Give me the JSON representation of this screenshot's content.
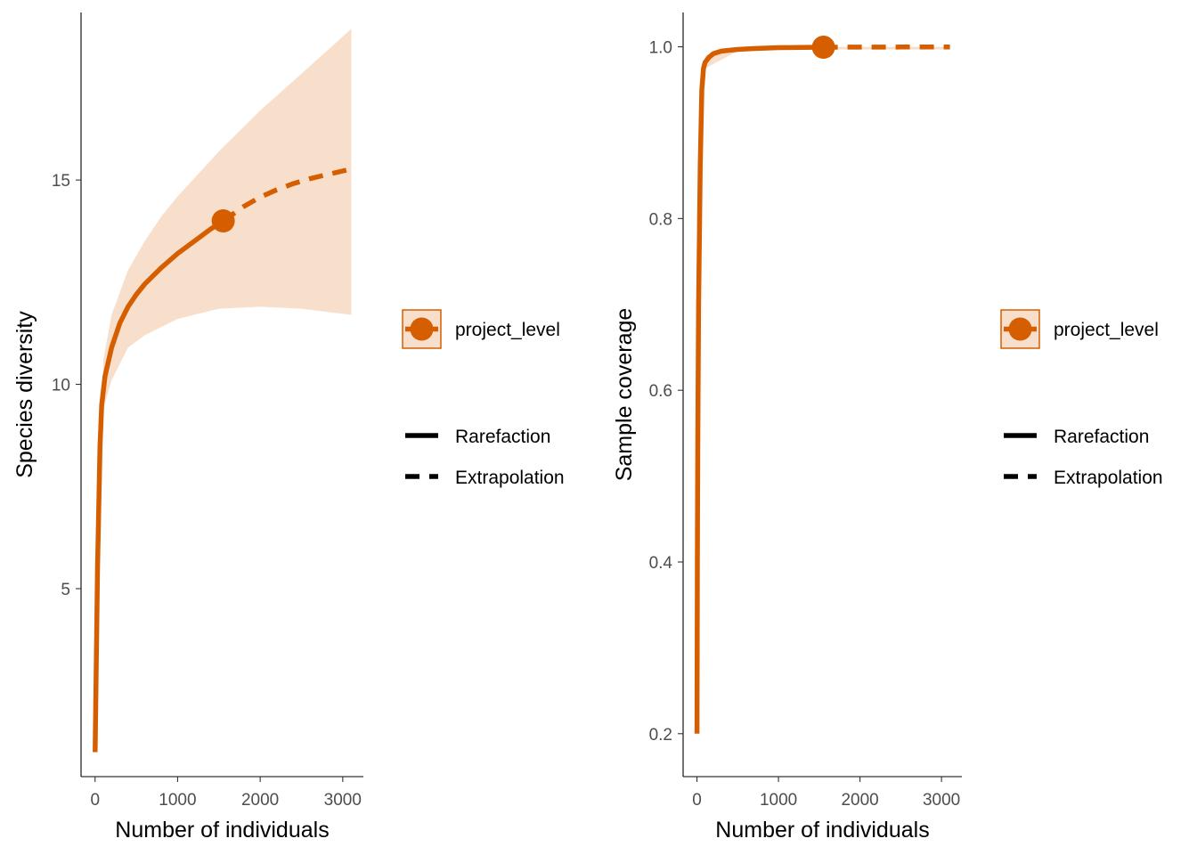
{
  "colors": {
    "line": "#D55E00",
    "ribbon": "#F7DFCC",
    "axis": "#000000",
    "tick_text": "#4D4D4D",
    "label_text": "#000000"
  },
  "chart_data": [
    {
      "type": "line",
      "xlabel": "Number of individuals",
      "ylabel": "Species diversity",
      "xlim": [
        -170,
        3250
      ],
      "ylim": [
        0.4,
        19.1
      ],
      "xticks": [
        0,
        1000,
        2000,
        3000
      ],
      "yticks": [
        5,
        10,
        15
      ],
      "grid": false,
      "legend_position": "right",
      "series": [
        {
          "name": "project_level",
          "rarefaction": {
            "x": [
              1,
              10,
              30,
              60,
              80,
              120,
              200,
              300,
              400,
              500,
              600,
              800,
              1000,
              1200,
              1400,
              1552
            ],
            "y": [
              1.0,
              2.5,
              5.5,
              8.5,
              9.5,
              10.2,
              10.9,
              11.5,
              11.9,
              12.2,
              12.45,
              12.85,
              13.2,
              13.5,
              13.8,
              14.0
            ]
          },
          "extrapolation": {
            "x": [
              1552,
              1800,
              2000,
              2200,
              2400,
              2600,
              2800,
              3000,
              3104
            ],
            "y": [
              14.0,
              14.35,
              14.58,
              14.76,
              14.91,
              15.03,
              15.13,
              15.22,
              15.27
            ]
          },
          "observed_point": {
            "x": 1552,
            "y": 14.0
          },
          "ribbon": {
            "x": [
              1,
              100,
              200,
              400,
              600,
              800,
              1000,
              1500,
              2000,
              2500,
              3104
            ],
            "lower": [
              1.0,
              9.4,
              10.1,
              10.9,
              11.2,
              11.4,
              11.6,
              11.85,
              11.9,
              11.85,
              11.7
            ],
            "upper": [
              1.0,
              10.6,
              11.7,
              12.8,
              13.5,
              14.1,
              14.6,
              15.7,
              16.7,
              17.6,
              18.7
            ]
          }
        }
      ],
      "legend": {
        "group_label": "project_level",
        "method_labels": [
          "Rarefaction",
          "Extrapolation"
        ]
      }
    },
    {
      "type": "line",
      "xlabel": "Number of individuals",
      "ylabel": "Sample coverage",
      "xlim": [
        -170,
        3250
      ],
      "ylim": [
        0.15,
        1.04
      ],
      "xticks": [
        0,
        1000,
        2000,
        3000
      ],
      "yticks": [
        0.2,
        0.4,
        0.6,
        0.8,
        1.0
      ],
      "ytick_labels": [
        "0.2",
        "0.4",
        "0.6",
        "0.8",
        "1.0"
      ],
      "grid": false,
      "legend_position": "right",
      "series": [
        {
          "name": "project_level",
          "rarefaction": {
            "x": [
              1,
              5,
              10,
              20,
              40,
              60,
              80,
              100,
              150,
              200,
              300,
              500,
              700,
              1000,
              1552
            ],
            "y": [
              0.2,
              0.4,
              0.55,
              0.7,
              0.86,
              0.95,
              0.975,
              0.982,
              0.988,
              0.992,
              0.995,
              0.997,
              0.998,
              0.999,
              0.9995
            ]
          },
          "extrapolation": {
            "x": [
              1552,
              2000,
              2500,
              3104
            ],
            "y": [
              0.9995,
              0.9997,
              0.9998,
              0.9999
            ]
          },
          "observed_point": {
            "x": 1552,
            "y": 0.9995
          },
          "ribbon": {
            "x": [
              1,
              100,
              500,
              1000,
              1552,
              2000,
              3104
            ],
            "lower": [
              0.19,
              0.975,
              0.995,
              0.997,
              0.997,
              0.997,
              0.997
            ],
            "upper": [
              0.21,
              0.99,
              0.999,
              1.0,
              1.0,
              1.0,
              1.0
            ]
          }
        }
      ],
      "legend": {
        "group_label": "project_level",
        "method_labels": [
          "Rarefaction",
          "Extrapolation"
        ]
      }
    }
  ]
}
